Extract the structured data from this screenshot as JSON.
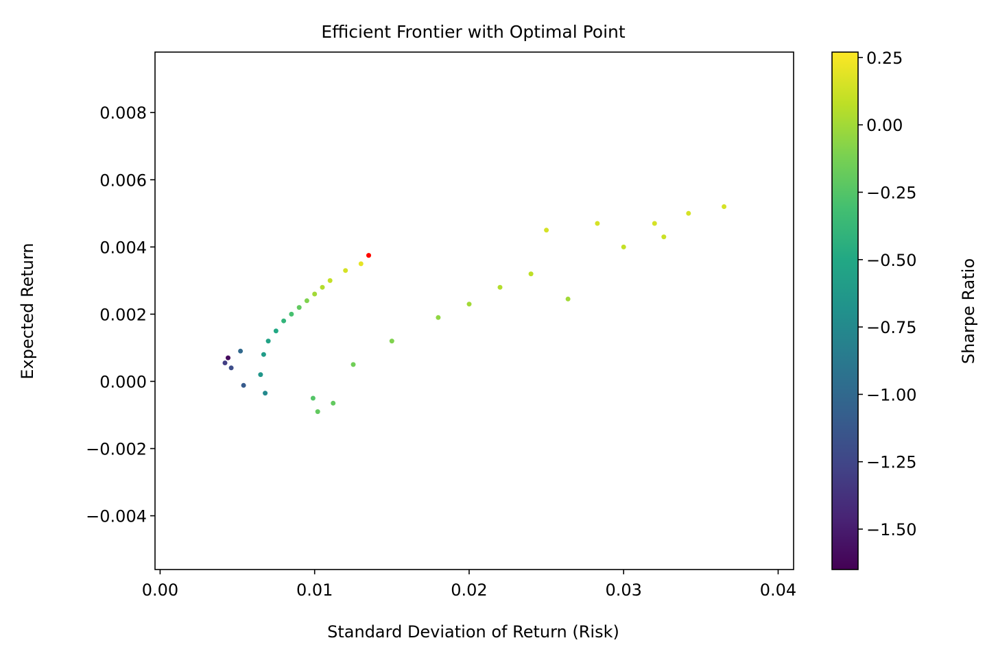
{
  "chart_data": {
    "type": "scatter",
    "title": "Efficient Frontier with Optimal Point",
    "xlabel": "Standard Deviation of Return (Risk)",
    "ylabel": "Expected Return",
    "xlim": [
      -0.00033,
      0.041
    ],
    "ylim": [
      -0.0056,
      0.0098
    ],
    "x_ticks": [
      0.0,
      0.01,
      0.02,
      0.03,
      0.04
    ],
    "x_tick_labels": [
      "0.00",
      "0.01",
      "0.02",
      "0.03",
      "0.04"
    ],
    "y_ticks": [
      -0.004,
      -0.002,
      0.0,
      0.002,
      0.004,
      0.006,
      0.008
    ],
    "y_tick_labels": [
      "−0.004",
      "−0.002",
      "0.000",
      "0.002",
      "0.004",
      "0.006",
      "0.008"
    ],
    "grid": false,
    "colormap": "viridis",
    "colorbar": {
      "label": "Sharpe Ratio",
      "range": [
        -1.65,
        0.27
      ],
      "ticks": [
        0.25,
        0.0,
        -0.25,
        -0.5,
        -0.75,
        -1.0,
        -1.25,
        -1.5
      ],
      "tick_labels": [
        "0.25",
        "0.00",
        "−0.25",
        "−0.50",
        "−0.75",
        "−1.00",
        "−1.25",
        "−1.50"
      ]
    },
    "series": [
      {
        "marker_color_by": "sharpe",
        "points": [
          [
            0.0044,
            0.0007,
            -1.6
          ],
          [
            0.0042,
            0.00055,
            -1.3
          ],
          [
            0.0046,
            0.0004,
            -1.2
          ],
          [
            0.0052,
            0.0009,
            -1.0
          ],
          [
            0.0054,
            -0.00012,
            -1.1
          ],
          [
            0.0068,
            -0.00035,
            -0.75
          ],
          [
            0.0065,
            0.0002,
            -0.65
          ],
          [
            0.0067,
            0.0008,
            -0.6
          ],
          [
            0.007,
            0.0012,
            -0.55
          ],
          [
            0.0075,
            0.0015,
            -0.5
          ],
          [
            0.008,
            0.0018,
            -0.4
          ],
          [
            0.0085,
            0.002,
            -0.3
          ],
          [
            0.009,
            0.0022,
            -0.2
          ],
          [
            0.0095,
            0.0024,
            -0.1
          ],
          [
            0.01,
            0.0026,
            0.0
          ],
          [
            0.0105,
            0.0028,
            0.05
          ],
          [
            0.011,
            0.003,
            0.1
          ],
          [
            0.012,
            0.0033,
            0.15
          ],
          [
            0.013,
            0.0035,
            0.2
          ],
          [
            0.0135,
            0.00375,
            0.25
          ],
          [
            0.0102,
            -0.0009,
            -0.2
          ],
          [
            0.0112,
            -0.00065,
            -0.2
          ],
          [
            0.0099,
            -0.0005,
            -0.25
          ],
          [
            0.0125,
            0.0005,
            -0.15
          ],
          [
            0.015,
            0.0012,
            -0.1
          ],
          [
            0.018,
            0.0019,
            -0.05
          ],
          [
            0.02,
            0.0023,
            0.0
          ],
          [
            0.022,
            0.0028,
            0.05
          ],
          [
            0.024,
            0.0032,
            0.08
          ],
          [
            0.0264,
            0.00245,
            0.0
          ],
          [
            0.025,
            0.0045,
            0.15
          ],
          [
            0.0283,
            0.0047,
            0.15
          ],
          [
            0.03,
            0.004,
            0.1
          ],
          [
            0.032,
            0.0047,
            0.15
          ],
          [
            0.0326,
            0.0043,
            0.12
          ],
          [
            0.0342,
            0.005,
            0.15
          ],
          [
            0.0365,
            0.0052,
            0.15
          ]
        ]
      }
    ],
    "optimal_point": {
      "x": 0.0135,
      "y": 0.00375,
      "color": "#ff0000"
    },
    "colors": {
      "axes": "#000000",
      "optimal": "#ff0000",
      "background": "#ffffff"
    }
  }
}
